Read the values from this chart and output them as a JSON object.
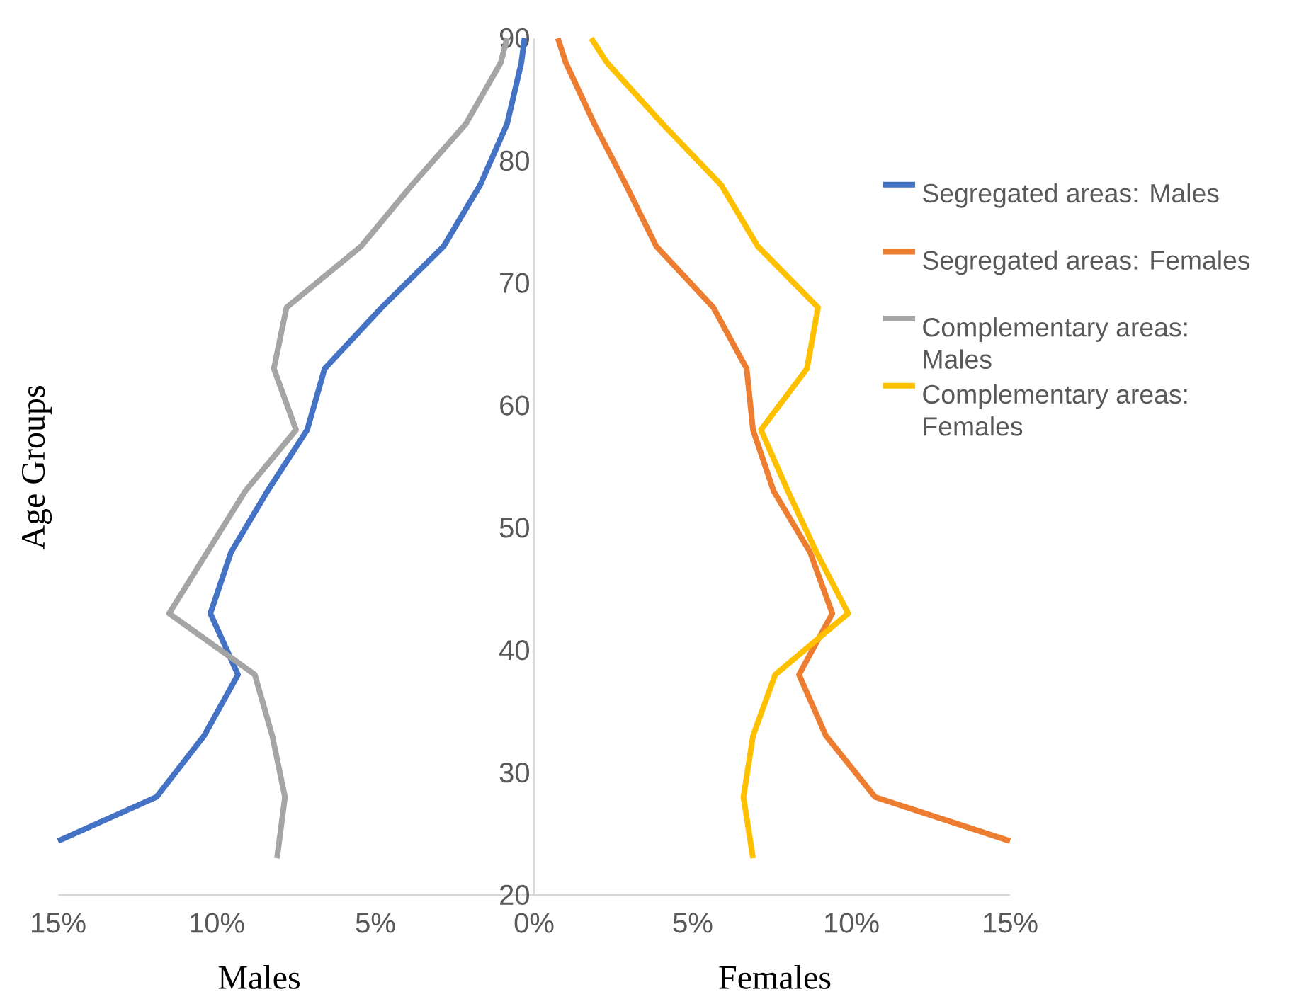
{
  "chart_data": {
    "type": "line",
    "xlabel": "Males",
    "ylabel": "Age Groups",
    "annotations": [
      "Females"
    ],
    "xlim": [
      -15,
      15
    ],
    "xticks": [
      {
        "value": -15,
        "label": "15%"
      },
      {
        "value": -10,
        "label": "10%"
      },
      {
        "value": -5,
        "label": "5%"
      },
      {
        "value": 0,
        "label": "0%"
      },
      {
        "value": 5,
        "label": "5%"
      },
      {
        "value": 10,
        "label": "10%"
      },
      {
        "value": 15,
        "label": "15%"
      }
    ],
    "ylim": [
      20,
      90
    ],
    "yticks": [
      20,
      30,
      40,
      50,
      60,
      70,
      80,
      90
    ],
    "legend": "right",
    "marker": "none",
    "line_style": "solid",
    "series": [
      {
        "name": "Segregated areas: Males",
        "color": "#4472c4",
        "x": [
          -15,
          -11.9,
          -10.4,
          -9.33,
          -10.2,
          -9.55,
          -8.4,
          -7.15,
          -6.6,
          -4.8,
          -2.85,
          -1.7,
          -0.85,
          -0.4,
          -0.3
        ],
        "values": [
          24.4,
          28,
          33,
          38,
          43,
          48,
          53,
          58,
          63,
          68,
          73,
          78,
          83,
          88,
          90
        ]
      },
      {
        "name": "Segregated areas: Females",
        "color": "#ed7d31",
        "x": [
          15,
          10.75,
          9.2,
          8.35,
          9.4,
          8.7,
          7.55,
          6.9,
          6.7,
          5.65,
          3.85,
          2.9,
          1.9,
          1.0,
          0.75
        ],
        "values": [
          24.4,
          28,
          33,
          38,
          43,
          48,
          53,
          58,
          63,
          68,
          73,
          78,
          83,
          88,
          90
        ]
      },
      {
        "name": "Complementary areas: Males",
        "color": "#a5a5a5",
        "x": [
          -8.1,
          -7.85,
          -8.25,
          -8.8,
          -11.5,
          -10.3,
          -9.1,
          -7.5,
          -8.2,
          -7.8,
          -5.45,
          -3.85,
          -2.15,
          -1.05,
          -0.85
        ],
        "values": [
          23,
          28,
          33,
          38,
          43,
          48,
          53,
          58,
          63,
          68,
          73,
          78,
          83,
          88,
          90
        ]
      },
      {
        "name": "Complementary areas: Females",
        "color": "#ffc000",
        "x": [
          6.9,
          6.6,
          6.9,
          7.6,
          9.9,
          8.9,
          8.0,
          7.15,
          8.6,
          8.95,
          7.05,
          5.9,
          4.05,
          2.3,
          1.8
        ],
        "values": [
          23,
          28,
          33,
          38,
          43,
          48,
          53,
          58,
          63,
          68,
          73,
          78,
          83,
          88,
          90
        ]
      }
    ]
  }
}
